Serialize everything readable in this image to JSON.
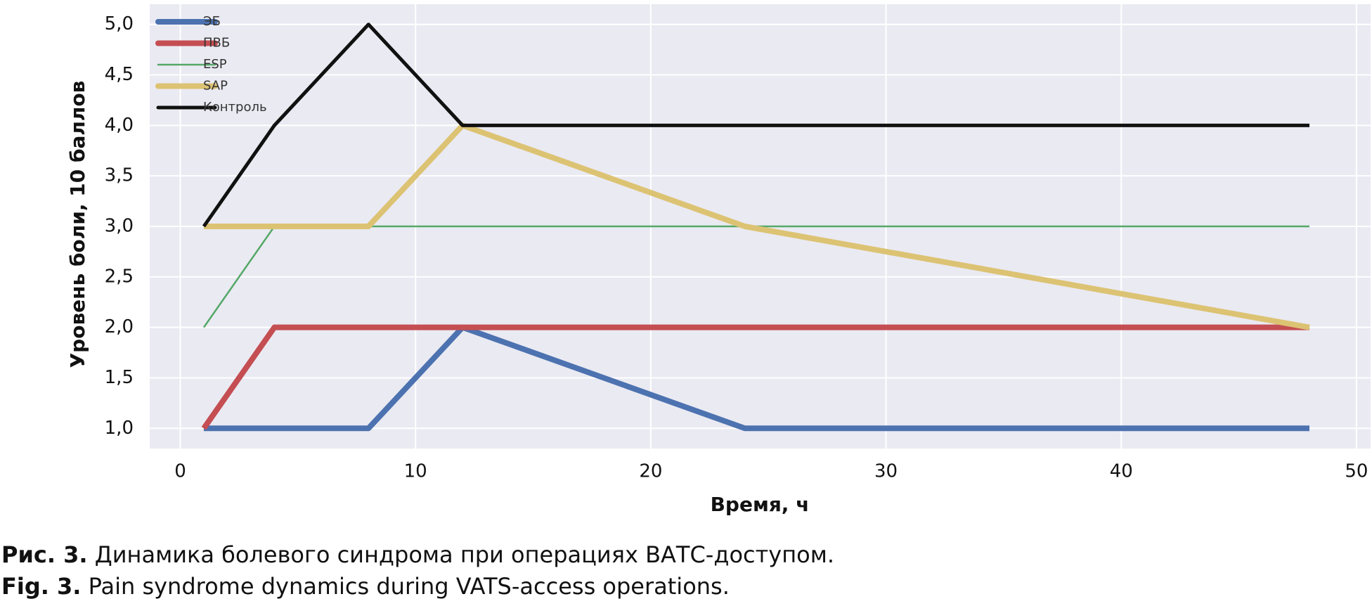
{
  "chart_data": {
    "type": "line",
    "xlabel": "Время, ч",
    "ylabel": "Уровень боли, 10 баллов",
    "x": [
      1,
      4,
      8,
      12,
      24,
      48
    ],
    "series": [
      {
        "name": "ЭБ",
        "color": "#4c72b0",
        "values": [
          1,
          1,
          1,
          2,
          1,
          1
        ]
      },
      {
        "name": "ПВБ",
        "color": "#c44e52",
        "values": [
          1,
          2,
          2,
          2,
          2,
          2
        ]
      },
      {
        "name": "ESP",
        "color": "#55a868",
        "values": [
          2,
          3,
          3,
          3,
          3,
          3
        ]
      },
      {
        "name": "SAP",
        "color": "#dcc373",
        "values": [
          3,
          3,
          3,
          4,
          3,
          2
        ]
      },
      {
        "name": "Контроль",
        "color": "#111111",
        "values": [
          3,
          4,
          5,
          4,
          4,
          4
        ]
      }
    ],
    "xlim": [
      -1.3,
      50.6
    ],
    "ylim": [
      0.8,
      5.2
    ],
    "xticks": [
      0,
      10,
      20,
      30,
      40,
      50
    ],
    "yticks": [
      {
        "value": 1.0,
        "label": "1,0"
      },
      {
        "value": 1.5,
        "label": "1,5"
      },
      {
        "value": 2.0,
        "label": "2,0"
      },
      {
        "value": 2.5,
        "label": "2,5"
      },
      {
        "value": 3.0,
        "label": "3,0"
      },
      {
        "value": 3.5,
        "label": "3,5"
      },
      {
        "value": 4.0,
        "label": "4,0"
      },
      {
        "value": 4.5,
        "label": "4,5"
      },
      {
        "value": 5.0,
        "label": "5,0"
      }
    ],
    "grid": true,
    "legend": "upper left"
  },
  "caption": {
    "ru": {
      "label": "Рис. 3.",
      "text": "Динамика болевого синдрома при операциях ВАТС-доступом."
    },
    "en": {
      "label": "Fig. 3.",
      "text": "Pain syndrome dynamics during VATS-access operations."
    }
  }
}
